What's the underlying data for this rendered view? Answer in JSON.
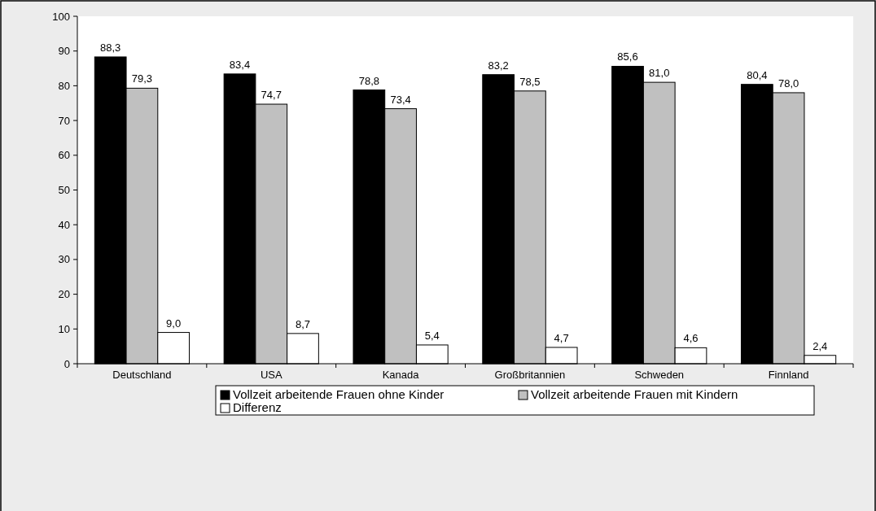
{
  "chart_data": {
    "type": "bar",
    "categories": [
      "Deutschland",
      "USA",
      "Kanada",
      "Großbritannien",
      "Schweden",
      "Finnland"
    ],
    "series": [
      {
        "name": "Vollzeit arbeitende Frauen ohne Kinder",
        "color": "#000000",
        "values": [
          88.3,
          83.4,
          78.8,
          83.2,
          85.6,
          80.4
        ],
        "value_labels": [
          "88,3",
          "83,4",
          "78,8",
          "83,2",
          "85,6",
          "80,4"
        ]
      },
      {
        "name": "Vollzeit arbeitende Frauen mit Kindern",
        "color": "#c0c0c0",
        "values": [
          79.3,
          74.7,
          73.4,
          78.5,
          81.0,
          78.0
        ],
        "value_labels": [
          "79,3",
          "74,7",
          "73,4",
          "78,5",
          "81,0",
          "78,0"
        ]
      },
      {
        "name": "Differenz",
        "color": "#ffffff",
        "values": [
          9.0,
          8.7,
          5.4,
          4.7,
          4.6,
          2.4
        ],
        "value_labels": [
          "9,0",
          "8,7",
          "5,4",
          "4,7",
          "4,6",
          "2,4"
        ]
      }
    ],
    "ylim": [
      0,
      100
    ],
    "yticks": [
      0,
      10,
      20,
      30,
      40,
      50,
      60,
      70,
      80,
      90,
      100
    ],
    "grid": false,
    "legend": "bottom"
  }
}
